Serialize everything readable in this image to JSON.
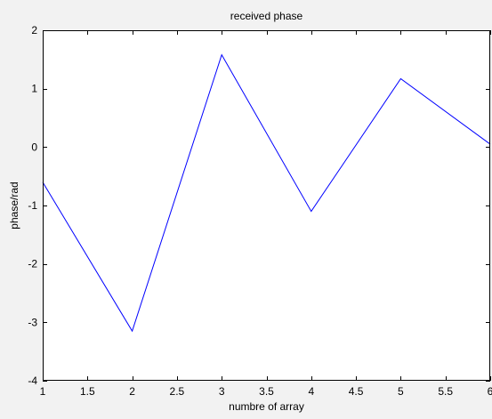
{
  "chart_data": {
    "type": "line",
    "title": "received phase",
    "xlabel": "numbre of array",
    "ylabel": "phase/rad",
    "xlim": [
      1,
      6
    ],
    "ylim": [
      -4,
      2
    ],
    "x_ticks": [
      "1",
      "1.5",
      "2",
      "2.5",
      "3",
      "3.5",
      "4",
      "4.5",
      "5",
      "5.5",
      "6"
    ],
    "y_ticks": [
      "-4",
      "-3",
      "-2",
      "-1",
      "0",
      "1",
      "2"
    ],
    "grid": false,
    "series": [
      {
        "x": [
          1,
          2,
          3,
          4,
          5,
          6
        ],
        "values": [
          -0.6,
          -3.15,
          1.58,
          -1.1,
          1.17,
          0.05
        ],
        "color": "#0000ff"
      }
    ]
  }
}
